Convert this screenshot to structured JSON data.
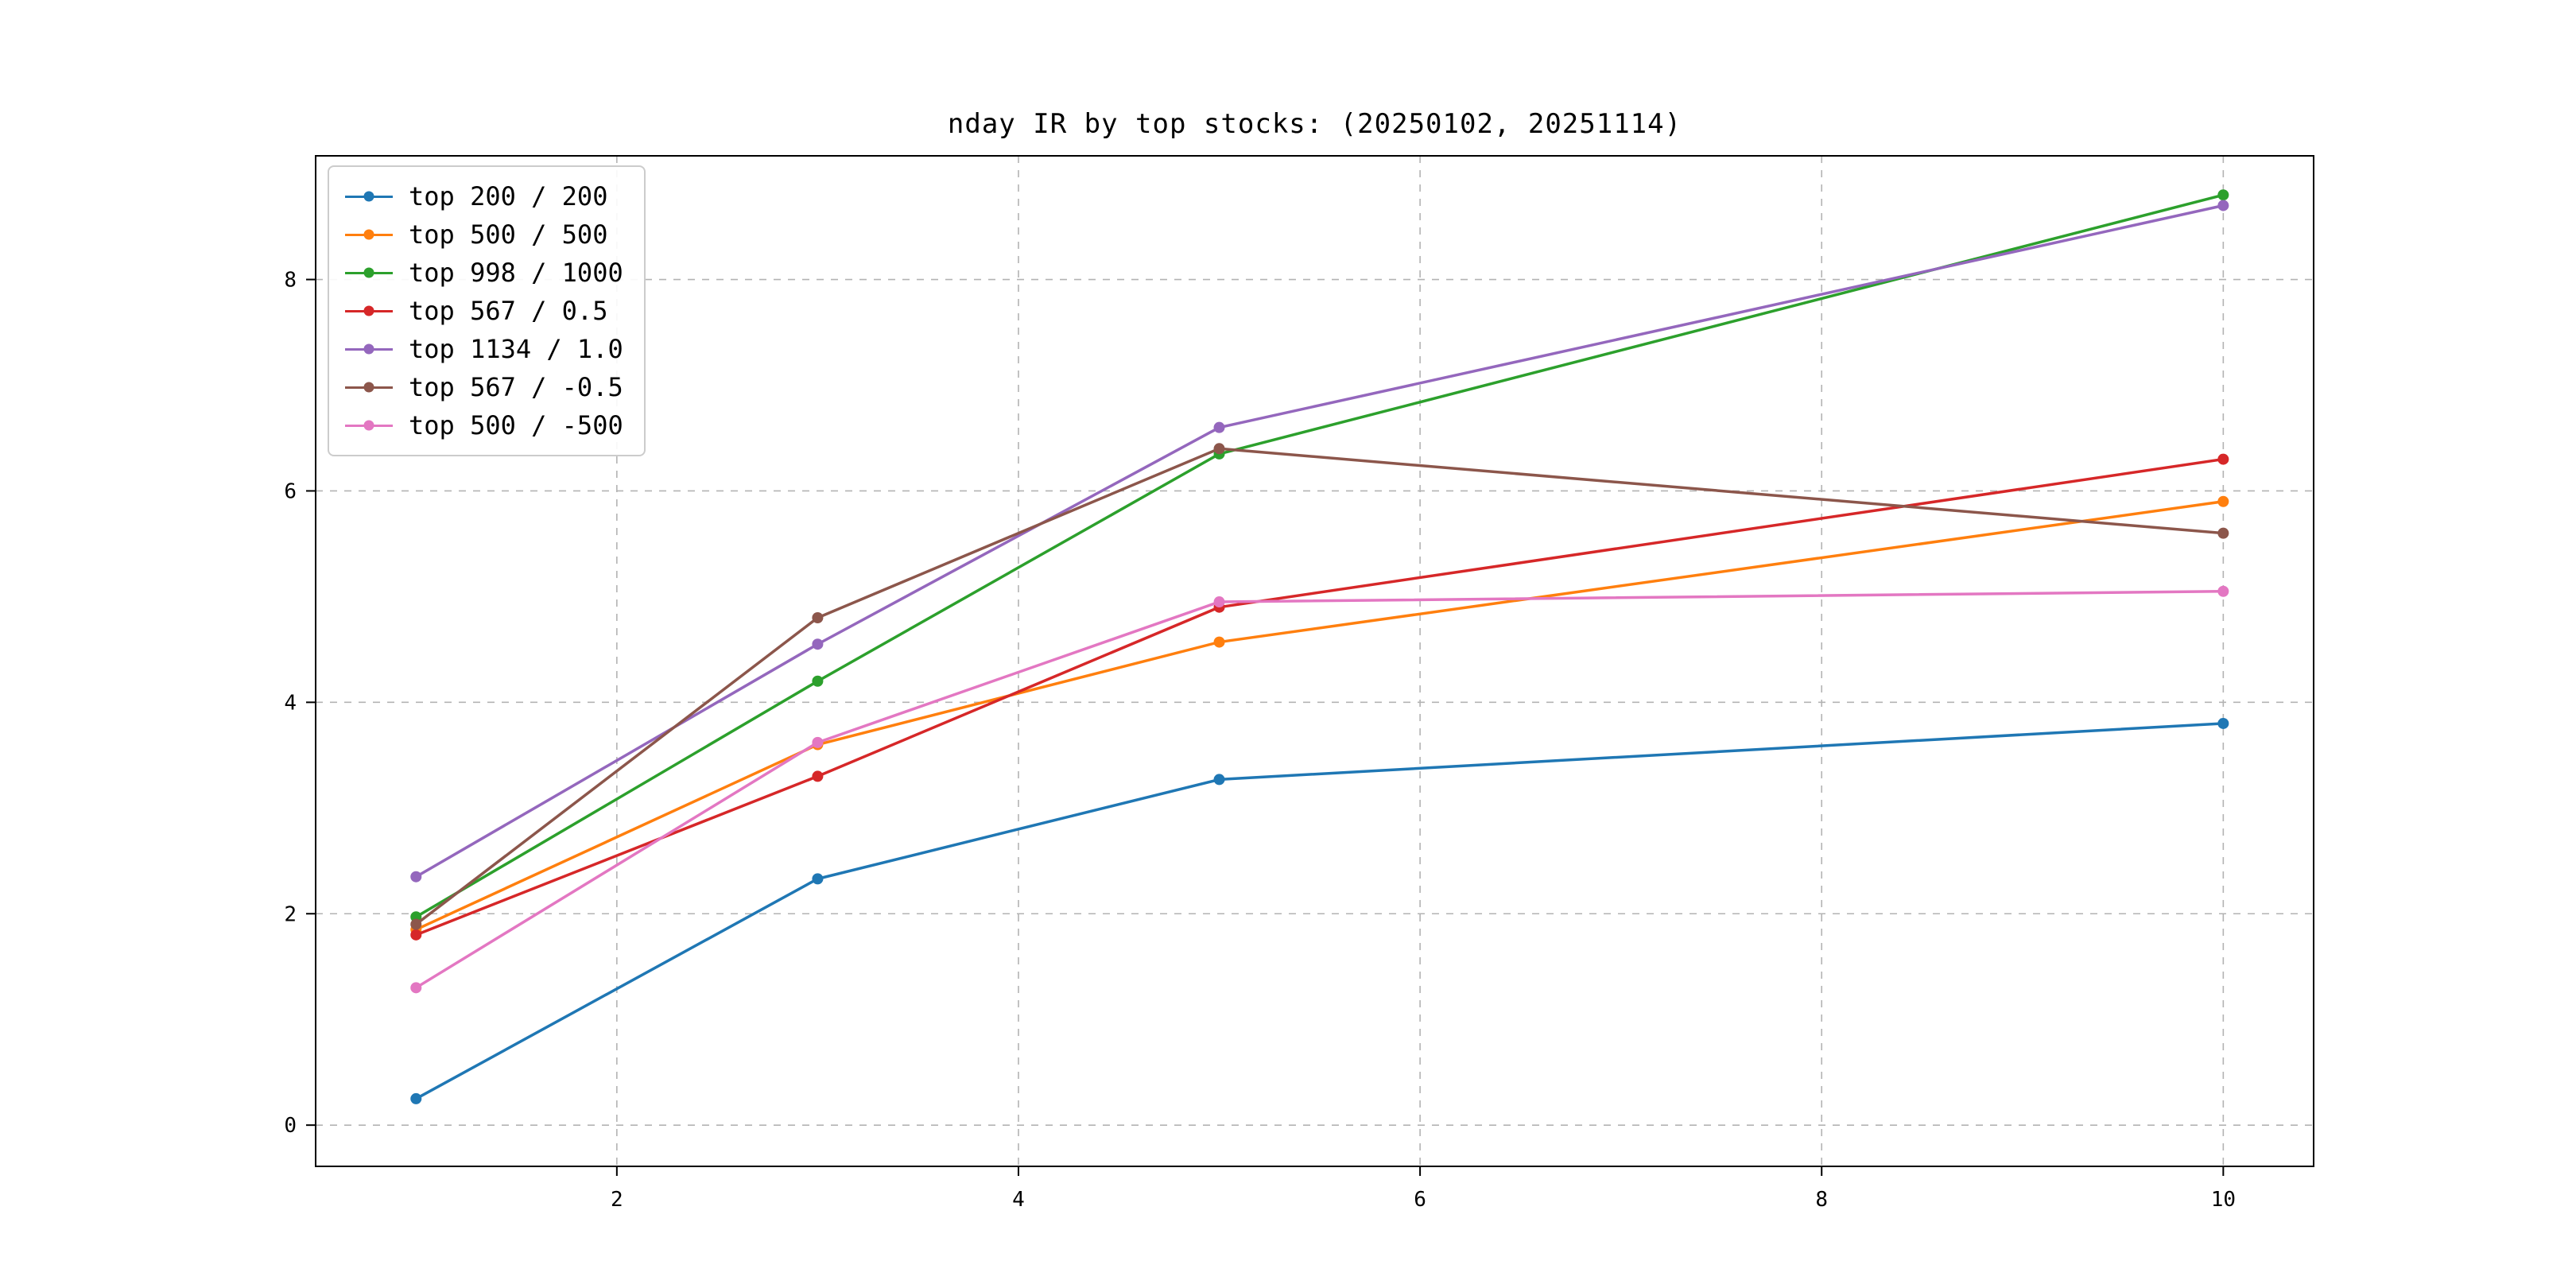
{
  "title": "nday IR by top stocks: (20250102, 20251114)",
  "chart_data": {
    "type": "line",
    "title": "nday IR by top stocks: (20250102, 20251114)",
    "xlabel": "",
    "ylabel": "",
    "x": [
      1,
      3,
      5,
      10
    ],
    "series": [
      {
        "name": "top 200 / 200",
        "color": "#1f77b4",
        "values": [
          0.25,
          2.33,
          3.27,
          3.8
        ]
      },
      {
        "name": "top 500 / 500",
        "color": "#ff7f0e",
        "values": [
          1.85,
          3.6,
          4.57,
          5.9
        ]
      },
      {
        "name": "top 998 / 1000",
        "color": "#2ca02c",
        "values": [
          1.97,
          4.2,
          6.35,
          8.8
        ]
      },
      {
        "name": "top 567 / 0.5",
        "color": "#d62728",
        "values": [
          1.8,
          3.3,
          4.9,
          6.3
        ]
      },
      {
        "name": "top 1134 / 1.0",
        "color": "#9467bd",
        "values": [
          2.35,
          4.55,
          6.6,
          8.7
        ]
      },
      {
        "name": "top 567 / -0.5",
        "color": "#8c564b",
        "values": [
          1.9,
          4.8,
          6.4,
          5.6
        ]
      },
      {
        "name": "top 500 / -500",
        "color": "#e377c2",
        "values": [
          1.3,
          3.62,
          4.95,
          5.05
        ]
      }
    ],
    "xticks": [
      2,
      4,
      6,
      8,
      10
    ],
    "yticks": [
      0,
      2,
      4,
      6,
      8
    ],
    "xlim": [
      0.5,
      10.45
    ],
    "ylim": [
      -0.39,
      9.17
    ],
    "grid": true,
    "grid_style": "dashed",
    "grid_color": "#b3b3b3",
    "axis_color": "#000000",
    "legend_position": "upper left"
  }
}
